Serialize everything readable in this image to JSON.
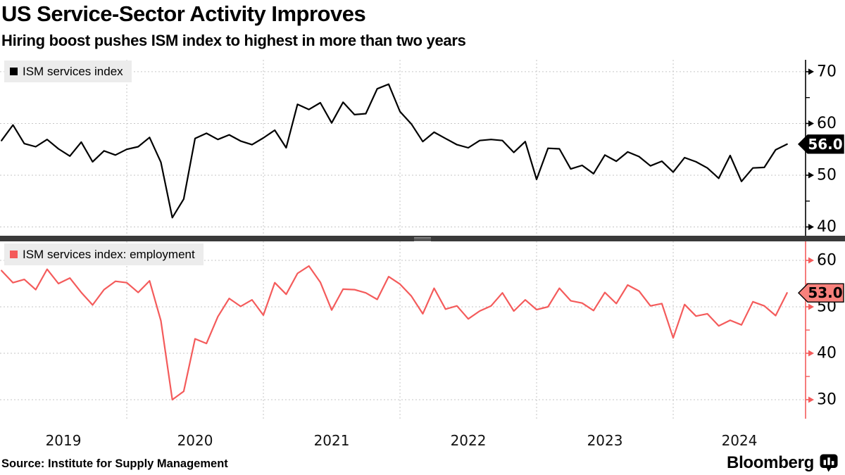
{
  "header": {
    "title": "US Service-Sector Activity Improves",
    "subtitle": "Hiring boost pushes ISM index to highest in more than two years"
  },
  "footer": {
    "source": "Source: Institute for Supply Management",
    "brand": "Bloomberg",
    "brand_icon": "bloomberg-terminal-icon"
  },
  "colors": {
    "grid": "#c6c6c6",
    "legend_bg": "#ececec",
    "separator": "#3a3a3a"
  },
  "x_axis": {
    "year_labels": [
      "2019",
      "2020",
      "2021",
      "2022",
      "2023",
      "2024"
    ]
  },
  "chart_data": [
    {
      "type": "line",
      "legend": "ISM services index",
      "color": "#000000",
      "axis_color": "#000000",
      "last_value_label": "56.0",
      "badge_bg": "#000000",
      "badge_text_color": "#ffffff",
      "badge_border": "#000000",
      "x_start": "2019-01",
      "x_end": "2024-10",
      "frequency": "monthly",
      "ylim": [
        38.3,
        72.3
      ],
      "yticks_major": [
        40,
        50,
        60,
        70
      ],
      "yticks_minor": [
        45,
        55,
        65
      ],
      "grid": "on",
      "legend_position": "top-left",
      "values": [
        56.7,
        59.7,
        56.1,
        55.5,
        56.9,
        55.1,
        53.7,
        56.4,
        52.6,
        54.7,
        53.9,
        55.0,
        55.5,
        57.3,
        52.5,
        41.8,
        45.4,
        57.1,
        58.1,
        56.9,
        57.8,
        56.6,
        55.9,
        57.2,
        58.7,
        55.3,
        63.7,
        62.7,
        64.0,
        60.1,
        64.1,
        61.7,
        61.9,
        66.7,
        67.6,
        62.3,
        59.9,
        56.5,
        58.3,
        57.1,
        55.9,
        55.3,
        56.7,
        56.9,
        56.7,
        54.4,
        56.5,
        49.2,
        55.2,
        55.1,
        51.2,
        51.9,
        50.3,
        53.9,
        52.7,
        54.5,
        53.6,
        51.8,
        52.7,
        50.6,
        53.4,
        52.6,
        51.4,
        49.4,
        53.8,
        48.8,
        51.4,
        51.5,
        54.9,
        56.0
      ]
    },
    {
      "type": "line",
      "legend": "ISM services index: employment",
      "color": "#f45b5b",
      "axis_color": "#f45b5b",
      "last_value_label": "53.0",
      "badge_bg": "#f8817c",
      "badge_text_color": "#000000",
      "badge_border": "#000000",
      "x_start": "2019-01",
      "x_end": "2024-10",
      "frequency": "monthly",
      "ylim": [
        25.9,
        64.1
      ],
      "yticks_major": [
        30,
        40,
        50,
        60
      ],
      "yticks_minor": [
        35,
        45,
        55
      ],
      "grid": "on",
      "legend_position": "top-left",
      "values": [
        57.8,
        55.2,
        55.9,
        53.7,
        58.1,
        55.0,
        56.2,
        53.1,
        50.4,
        53.7,
        55.5,
        55.2,
        53.1,
        55.6,
        47.0,
        30.0,
        31.8,
        43.1,
        42.1,
        47.9,
        51.8,
        50.1,
        51.5,
        48.2,
        55.2,
        52.7,
        57.2,
        58.8,
        55.3,
        49.3,
        53.8,
        53.7,
        53.0,
        51.6,
        56.5,
        54.9,
        52.3,
        48.5,
        54.0,
        49.5,
        50.2,
        47.4,
        49.1,
        50.2,
        53.0,
        49.1,
        51.5,
        49.4,
        50.0,
        54.0,
        51.3,
        50.8,
        49.2,
        53.1,
        50.7,
        54.7,
        53.4,
        50.2,
        50.7,
        43.3,
        50.5,
        48.0,
        48.5,
        45.9,
        47.1,
        46.1,
        51.1,
        50.2,
        48.1,
        53.0
      ]
    }
  ]
}
